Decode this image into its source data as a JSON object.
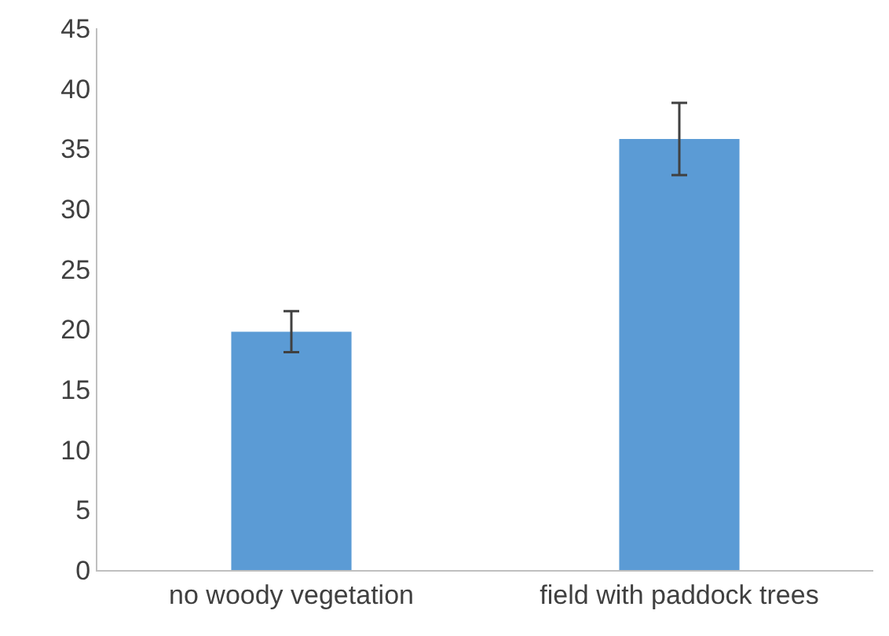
{
  "chart_data": {
    "type": "bar",
    "categories": [
      "no woody vegetation",
      "field with paddock trees"
    ],
    "values": [
      19.8,
      35.8
    ],
    "errors": [
      1.7,
      3.0
    ],
    "color": "#5b9bd5",
    "ylim": [
      0,
      45
    ],
    "yticks": [
      0,
      5,
      10,
      15,
      20,
      25,
      30,
      35,
      40,
      45
    ],
    "grid": false
  }
}
